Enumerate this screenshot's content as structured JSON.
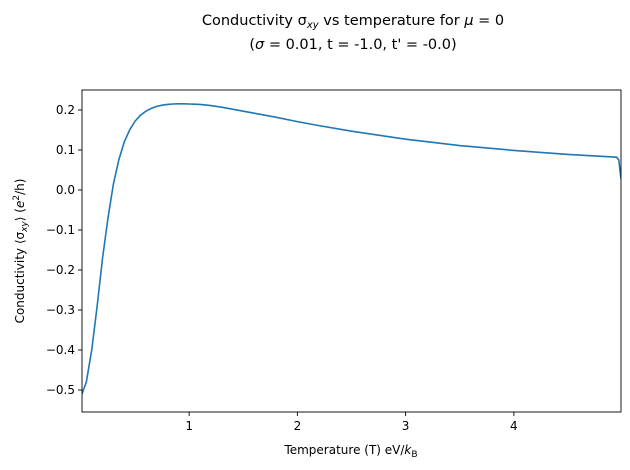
{
  "chart_data": {
    "type": "line",
    "title_line1": "Conductivity σ",
    "title_line1_sub": "xy",
    "title_line1_rest": " vs temperature for ",
    "title_line1_mu": "μ",
    "title_line1_end": " = 0",
    "title_line2_open": "(",
    "title_line2_sigma": "σ",
    "title_line2_rest": " = 0.01, t = -1.0, t' = -0.0)",
    "xlabel_main": "Temperature (T) eV/",
    "xlabel_k": "k",
    "xlabel_sub": "B",
    "ylabel_main": "Conductivity ⟨σ",
    "ylabel_sub": "xy",
    "ylabel_mid": "⟩ (",
    "ylabel_e": "e",
    "ylabel_sup": "2",
    "ylabel_end": "/h)",
    "xlim": [
      0.01,
      4.99
    ],
    "ylim": [
      -0.555,
      0.25
    ],
    "xticks": [
      1,
      2,
      3,
      4
    ],
    "xtick_labels": [
      "1",
      "2",
      "3",
      "4"
    ],
    "yticks": [
      0.2,
      0.1,
      0.0,
      -0.1,
      -0.2,
      -0.3,
      -0.4,
      -0.5
    ],
    "ytick_labels": [
      "0.2",
      "0.1",
      "0.0",
      "−0.1",
      "−0.2",
      "−0.3",
      "−0.4",
      "−0.5"
    ],
    "grid": false,
    "series": [
      {
        "color": "#1f77b4",
        "x": [
          0.01,
          0.05,
          0.1,
          0.15,
          0.2,
          0.25,
          0.3,
          0.35,
          0.4,
          0.45,
          0.5,
          0.55,
          0.6,
          0.65,
          0.7,
          0.75,
          0.8,
          0.85,
          0.9,
          0.95,
          1.0,
          1.05,
          1.1,
          1.2,
          1.3,
          1.4,
          1.5,
          1.6,
          1.8,
          2.0,
          2.2,
          2.5,
          3.0,
          3.5,
          4.0,
          4.5,
          4.95,
          4.97,
          4.98,
          4.99
        ],
        "y": [
          -0.51,
          -0.48,
          -0.4,
          -0.29,
          -0.17,
          -0.07,
          0.015,
          0.075,
          0.12,
          0.15,
          0.172,
          0.187,
          0.197,
          0.204,
          0.209,
          0.212,
          0.214,
          0.215,
          0.2155,
          0.2155,
          0.215,
          0.2145,
          0.214,
          0.211,
          0.207,
          0.202,
          0.197,
          0.192,
          0.182,
          0.171,
          0.161,
          0.147,
          0.127,
          0.111,
          0.099,
          0.089,
          0.082,
          0.075,
          0.05,
          0.028
        ]
      }
    ]
  }
}
